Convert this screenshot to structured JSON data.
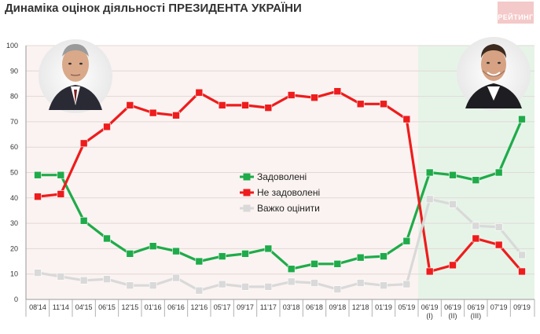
{
  "title": "Динаміка оцінок діяльності ПРЕЗИДЕНТА УКРАЇНИ",
  "logo_text": "РЕЙТИНГ",
  "chart_data": {
    "type": "line",
    "title": "Динаміка оцінок діяльності ПРЕЗИДЕНТА УКРАЇНИ",
    "ylim": [
      0,
      100
    ],
    "yticks": [
      0,
      10,
      20,
      30,
      40,
      50,
      60,
      70,
      80,
      90,
      100
    ],
    "x_labels": [
      "08'14",
      "11'14",
      "04'15",
      "06'15",
      "12'15",
      "01'16",
      "06'16",
      "12'16",
      "05'17",
      "09'17",
      "11'17",
      "03'18",
      "06'18",
      "09'18",
      "12'18",
      "01'19",
      "05'19",
      "06'19\n(I)",
      "06'19\n(II)",
      "06'19\n(III)",
      "07'19",
      "09'19"
    ],
    "highlight_from_index": 17,
    "series": [
      {
        "name": "Задоволені",
        "color": "#1fab4a",
        "values": [
          49,
          49,
          31,
          24,
          18,
          21,
          19,
          15,
          17,
          18,
          20,
          12,
          14,
          14,
          16.5,
          17,
          23,
          50,
          49,
          47,
          50,
          71
        ]
      },
      {
        "name": "Не задоволені",
        "color": "#ee1c1c",
        "values": [
          40.5,
          41.5,
          61.5,
          68,
          76.5,
          73.5,
          72.5,
          81.5,
          76.5,
          76.5,
          75.5,
          80.5,
          79.5,
          82,
          77,
          77,
          71,
          11,
          13.5,
          24,
          21.5,
          11
        ]
      },
      {
        "name": "Важко оцінити",
        "color": "#d9d9d9",
        "values": [
          10.5,
          9,
          7.5,
          8,
          5.5,
          5.5,
          8.5,
          3.5,
          6,
          5,
          5,
          7,
          6.5,
          4,
          6.5,
          5.5,
          6,
          39.5,
          37.5,
          29,
          28.5,
          17.5
        ]
      }
    ]
  }
}
